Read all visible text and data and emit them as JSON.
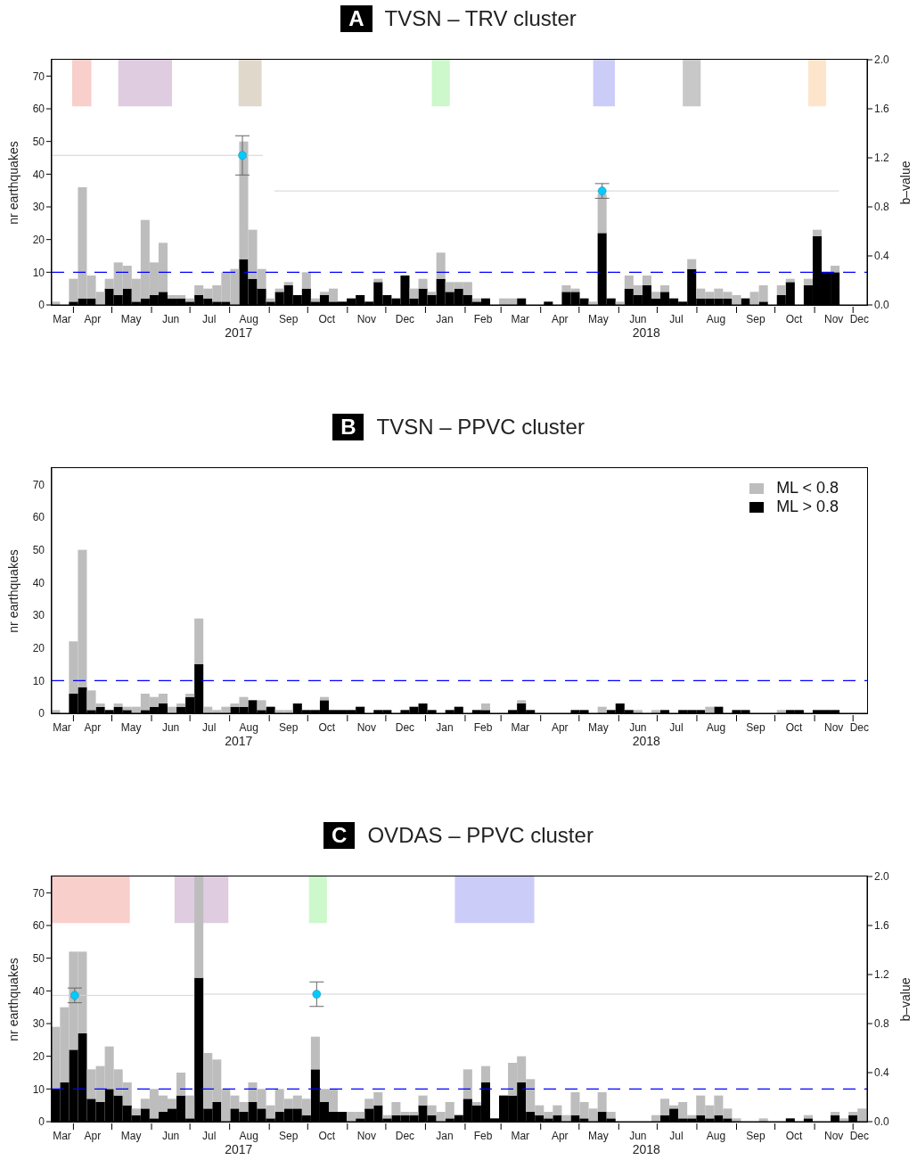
{
  "chart_data": [
    {
      "type": "bar",
      "title": "A TVSN – TRV cluster",
      "ylabel": "nr earthquakes",
      "y2label": "b–value",
      "stacked": true,
      "x": [
        "2017-03-18",
        "2017-03-25",
        "2017-04-01",
        "2017-04-08",
        "2017-04-15",
        "2017-04-22",
        "2017-04-29",
        "2017-05-06",
        "2017-05-13",
        "2017-05-20",
        "2017-05-27",
        "2017-06-03",
        "2017-06-10",
        "2017-06-17",
        "2017-06-24",
        "2017-07-01",
        "2017-07-08",
        "2017-07-15",
        "2017-07-22",
        "2017-07-29",
        "2017-08-05",
        "2017-08-12",
        "2017-08-19",
        "2017-08-26",
        "2017-09-02",
        "2017-09-09",
        "2017-09-16",
        "2017-09-23",
        "2017-09-30",
        "2017-10-07",
        "2017-10-14",
        "2017-10-21",
        "2017-10-28",
        "2017-11-04",
        "2017-11-11",
        "2017-11-18",
        "2017-11-25",
        "2017-12-02",
        "2017-12-09",
        "2017-12-16",
        "2017-12-23",
        "2017-12-30",
        "2018-01-06",
        "2018-01-13",
        "2018-01-20",
        "2018-01-27",
        "2018-02-03",
        "2018-02-10",
        "2018-02-17",
        "2018-02-24",
        "2018-03-03",
        "2018-03-10",
        "2018-03-17",
        "2018-03-24",
        "2018-03-31",
        "2018-04-07",
        "2018-04-14",
        "2018-04-21",
        "2018-04-28",
        "2018-05-05",
        "2018-05-12",
        "2018-05-19",
        "2018-05-26",
        "2018-06-02",
        "2018-06-09",
        "2018-06-16",
        "2018-06-23",
        "2018-06-30",
        "2018-07-07",
        "2018-07-14",
        "2018-07-21",
        "2018-07-28",
        "2018-08-04",
        "2018-08-11",
        "2018-08-18",
        "2018-08-25",
        "2018-09-01",
        "2018-09-08",
        "2018-09-15",
        "2018-09-22",
        "2018-09-29",
        "2018-10-06",
        "2018-10-13",
        "2018-10-20",
        "2018-10-27",
        "2018-11-03",
        "2018-11-10",
        "2018-11-17",
        "2018-11-24",
        "2018-12-01",
        "2018-12-08"
      ],
      "xlim": [
        "2017-03-15",
        "2018-12-12"
      ],
      "xticks": [
        {
          "value": "2017-03-23",
          "label": "Mar"
        },
        {
          "value": "2017-04-01",
          "label": null
        },
        {
          "value": "2017-04-16",
          "label": "Apr"
        },
        {
          "value": "2017-05-01",
          "label": null
        },
        {
          "value": "2017-05-16",
          "label": "May"
        },
        {
          "value": "2017-06-01",
          "label": null
        },
        {
          "value": "2017-06-16",
          "label": "Jun"
        },
        {
          "value": "2017-07-01",
          "label": null
        },
        {
          "value": "2017-07-16",
          "label": "Jul"
        },
        {
          "value": "2017-08-01",
          "label": null
        },
        {
          "value": "2017-08-16",
          "label": "Aug"
        },
        {
          "value": "2017-09-01",
          "label": null
        },
        {
          "value": "2017-09-16",
          "label": "Sep"
        },
        {
          "value": "2017-10-01",
          "label": null
        },
        {
          "value": "2017-10-16",
          "label": "Oct"
        },
        {
          "value": "2017-11-01",
          "label": null
        },
        {
          "value": "2017-11-16",
          "label": "Nov"
        },
        {
          "value": "2017-12-01",
          "label": null
        },
        {
          "value": "2017-12-16",
          "label": "Dec"
        },
        {
          "value": "2018-01-01",
          "label": null
        },
        {
          "value": "2018-01-16",
          "label": "Jan"
        },
        {
          "value": "2018-02-01",
          "label": null
        },
        {
          "value": "2018-02-15",
          "label": "Feb"
        },
        {
          "value": "2018-03-01",
          "label": null
        },
        {
          "value": "2018-03-16",
          "label": "Mar"
        },
        {
          "value": "2018-04-01",
          "label": null
        },
        {
          "value": "2018-04-16",
          "label": "Apr"
        },
        {
          "value": "2018-05-01",
          "label": null
        },
        {
          "value": "2018-05-16",
          "label": "May"
        },
        {
          "value": "2018-06-01",
          "label": null
        },
        {
          "value": "2018-06-16",
          "label": "Jun"
        },
        {
          "value": "2018-07-01",
          "label": null
        },
        {
          "value": "2018-07-16",
          "label": "Jul"
        },
        {
          "value": "2018-08-01",
          "label": null
        },
        {
          "value": "2018-08-16",
          "label": "Aug"
        },
        {
          "value": "2018-09-01",
          "label": null
        },
        {
          "value": "2018-09-16",
          "label": "Sep"
        },
        {
          "value": "2018-10-01",
          "label": null
        },
        {
          "value": "2018-10-16",
          "label": "Oct"
        },
        {
          "value": "2018-11-01",
          "label": null
        },
        {
          "value": "2018-11-16",
          "label": "Nov"
        },
        {
          "value": "2018-12-01",
          "label": null
        },
        {
          "value": "2018-12-06",
          "label": "Dec"
        }
      ],
      "ylim": [
        0,
        75
      ],
      "yticks": [
        0,
        10,
        20,
        30,
        40,
        50,
        60,
        70
      ],
      "y2lim": [
        0,
        2
      ],
      "y2ticks": [
        {
          "value": 0,
          "label": "0.0"
        },
        {
          "value": 0.4,
          "label": "0.4"
        },
        {
          "value": 0.8,
          "label": "0.8"
        },
        {
          "value": 1.2,
          "label": "1.2"
        },
        {
          "value": 1.6,
          "label": "1.6"
        },
        {
          "value": 2,
          "label": "2.0"
        }
      ],
      "ref_lines": [
        {
          "axis": "y",
          "value": 10,
          "color": "#0000ff",
          "line_style": "dashed"
        }
      ],
      "bands": [
        {
          "axis": "x",
          "from": "2017-03-31",
          "to": "2017-04-15",
          "color": "#f8cfcb"
        },
        {
          "axis": "x",
          "from": "2017-05-06",
          "to": "2017-06-17",
          "color": "#dfcce0"
        },
        {
          "axis": "x",
          "from": "2017-08-08",
          "to": "2017-08-26",
          "color": "#e0d8cb"
        },
        {
          "axis": "x",
          "from": "2018-01-06",
          "to": "2018-01-20",
          "color": "#ccf8cc"
        },
        {
          "axis": "x",
          "from": "2018-05-12",
          "to": "2018-05-29",
          "color": "#ccccf8"
        },
        {
          "axis": "x",
          "from": "2018-07-21",
          "to": "2018-08-04",
          "color": "#c8c8c8"
        },
        {
          "axis": "x",
          "from": "2018-10-27",
          "to": "2018-11-10",
          "color": "#fde5cc"
        }
      ],
      "annotations": [
        "2017",
        "2018"
      ],
      "legend": false,
      "series": [
        {
          "color": "#000000",
          "values": [
            0,
            0,
            1,
            2,
            2,
            0,
            5,
            3,
            5,
            1,
            2,
            3,
            4,
            2,
            2,
            1,
            3,
            2,
            1,
            1,
            0,
            14,
            8,
            5,
            1,
            4,
            6,
            3,
            5,
            1,
            3,
            1,
            1,
            2,
            3,
            1,
            7,
            3,
            2,
            9,
            2,
            5,
            3,
            8,
            4,
            5,
            3,
            1,
            2,
            0,
            0,
            0,
            2,
            0,
            0,
            1,
            0,
            4,
            4,
            2,
            0,
            22,
            2,
            0,
            5,
            3,
            6,
            2,
            4,
            2,
            1,
            11,
            2,
            2,
            2,
            2,
            0,
            2,
            0,
            1,
            0,
            3,
            7,
            0,
            6,
            21,
            10,
            10,
            0,
            0,
            0
          ]
        },
        {
          "color": "#bdbdbd",
          "values": [
            1,
            0,
            7,
            34,
            7,
            4,
            3,
            10,
            7,
            7,
            24,
            10,
            15,
            1,
            1,
            1,
            3,
            3,
            5,
            9,
            11,
            36,
            15,
            6,
            1,
            1,
            1,
            0,
            5,
            1,
            1,
            4,
            0,
            0,
            0,
            0,
            1,
            0,
            0,
            0,
            3,
            3,
            1,
            8,
            3,
            2,
            4,
            1,
            0,
            0,
            2,
            2,
            0,
            0,
            0,
            0,
            0,
            2,
            1,
            0,
            1,
            12,
            0,
            1,
            4,
            3,
            3,
            2,
            2,
            0,
            0,
            3,
            3,
            2,
            3,
            2,
            3,
            0,
            4,
            5,
            0,
            3,
            1,
            0,
            2,
            2,
            0,
            2,
            0,
            0,
            0
          ]
        },
        {
          "type": "scatter",
          "axis": "y2",
          "color": "#00ccff",
          "marker": "circle",
          "x": [
            "2017-08-11",
            "2018-05-19"
          ],
          "values": [
            1.22,
            0.93
          ],
          "errors": [
            [
              1.06,
              1.38
            ],
            [
              0.87,
              0.99
            ]
          ]
        },
        {
          "type": "line",
          "axis": "y2",
          "color": "#d3d3d3",
          "marker": "none",
          "x": [
            "2017-03-15",
            "2017-08-27"
          ],
          "values": [
            1.22,
            1.22
          ]
        },
        {
          "type": "line",
          "axis": "y2",
          "color": "#d3d3d3",
          "marker": "none",
          "x": [
            "2017-09-05",
            "2018-11-20"
          ],
          "values": [
            0.93,
            0.93
          ]
        }
      ]
    },
    {
      "type": "bar",
      "title": "B TVSN – PPVC cluster",
      "ylabel": "nr earthquakes",
      "stacked": true,
      "x": [
        "2017-03-18",
        "2017-03-25",
        "2017-04-01",
        "2017-04-08",
        "2017-04-15",
        "2017-04-22",
        "2017-04-29",
        "2017-05-06",
        "2017-05-13",
        "2017-05-20",
        "2017-05-27",
        "2017-06-03",
        "2017-06-10",
        "2017-06-17",
        "2017-06-24",
        "2017-07-01",
        "2017-07-08",
        "2017-07-15",
        "2017-07-22",
        "2017-07-29",
        "2017-08-05",
        "2017-08-12",
        "2017-08-19",
        "2017-08-26",
        "2017-09-02",
        "2017-09-09",
        "2017-09-16",
        "2017-09-23",
        "2017-09-30",
        "2017-10-07",
        "2017-10-14",
        "2017-10-21",
        "2017-10-28",
        "2017-11-04",
        "2017-11-11",
        "2017-11-18",
        "2017-11-25",
        "2017-12-02",
        "2017-12-09",
        "2017-12-16",
        "2017-12-23",
        "2017-12-30",
        "2018-01-06",
        "2018-01-13",
        "2018-01-20",
        "2018-01-27",
        "2018-02-03",
        "2018-02-10",
        "2018-02-17",
        "2018-02-24",
        "2018-03-03",
        "2018-03-10",
        "2018-03-17",
        "2018-03-24",
        "2018-03-31",
        "2018-04-07",
        "2018-04-14",
        "2018-04-21",
        "2018-04-28",
        "2018-05-05",
        "2018-05-12",
        "2018-05-19",
        "2018-05-26",
        "2018-06-02",
        "2018-06-09",
        "2018-06-16",
        "2018-06-23",
        "2018-06-30",
        "2018-07-07",
        "2018-07-14",
        "2018-07-21",
        "2018-07-28",
        "2018-08-04",
        "2018-08-11",
        "2018-08-18",
        "2018-08-25",
        "2018-09-01",
        "2018-09-08",
        "2018-09-15",
        "2018-09-22",
        "2018-09-29",
        "2018-10-06",
        "2018-10-13",
        "2018-10-20",
        "2018-10-27",
        "2018-11-03",
        "2018-11-10",
        "2018-11-17",
        "2018-11-24",
        "2018-12-01",
        "2018-12-08"
      ],
      "xlim": [
        "2017-03-15",
        "2018-12-12"
      ],
      "xticks": [
        {
          "value": "2017-03-23",
          "label": "Mar"
        },
        {
          "value": "2017-04-01",
          "label": null
        },
        {
          "value": "2017-04-16",
          "label": "Apr"
        },
        {
          "value": "2017-05-01",
          "label": null
        },
        {
          "value": "2017-05-16",
          "label": "May"
        },
        {
          "value": "2017-06-01",
          "label": null
        },
        {
          "value": "2017-06-16",
          "label": "Jun"
        },
        {
          "value": "2017-07-01",
          "label": null
        },
        {
          "value": "2017-07-16",
          "label": "Jul"
        },
        {
          "value": "2017-08-01",
          "label": null
        },
        {
          "value": "2017-08-16",
          "label": "Aug"
        },
        {
          "value": "2017-09-01",
          "label": null
        },
        {
          "value": "2017-09-16",
          "label": "Sep"
        },
        {
          "value": "2017-10-01",
          "label": null
        },
        {
          "value": "2017-10-16",
          "label": "Oct"
        },
        {
          "value": "2017-11-01",
          "label": null
        },
        {
          "value": "2017-11-16",
          "label": "Nov"
        },
        {
          "value": "2017-12-01",
          "label": null
        },
        {
          "value": "2017-12-16",
          "label": "Dec"
        },
        {
          "value": "2018-01-01",
          "label": null
        },
        {
          "value": "2018-01-16",
          "label": "Jan"
        },
        {
          "value": "2018-02-01",
          "label": null
        },
        {
          "value": "2018-02-15",
          "label": "Feb"
        },
        {
          "value": "2018-03-01",
          "label": null
        },
        {
          "value": "2018-03-16",
          "label": "Mar"
        },
        {
          "value": "2018-04-01",
          "label": null
        },
        {
          "value": "2018-04-16",
          "label": "Apr"
        },
        {
          "value": "2018-05-01",
          "label": null
        },
        {
          "value": "2018-05-16",
          "label": "May"
        },
        {
          "value": "2018-06-01",
          "label": null
        },
        {
          "value": "2018-06-16",
          "label": "Jun"
        },
        {
          "value": "2018-07-01",
          "label": null
        },
        {
          "value": "2018-07-16",
          "label": "Jul"
        },
        {
          "value": "2018-08-01",
          "label": null
        },
        {
          "value": "2018-08-16",
          "label": "Aug"
        },
        {
          "value": "2018-09-01",
          "label": null
        },
        {
          "value": "2018-09-16",
          "label": "Sep"
        },
        {
          "value": "2018-10-01",
          "label": null
        },
        {
          "value": "2018-10-16",
          "label": "Oct"
        },
        {
          "value": "2018-11-01",
          "label": null
        },
        {
          "value": "2018-11-16",
          "label": "Nov"
        },
        {
          "value": "2018-12-01",
          "label": null
        },
        {
          "value": "2018-12-06",
          "label": "Dec"
        }
      ],
      "ylim": [
        0,
        75
      ],
      "yticks": [
        0,
        10,
        20,
        30,
        40,
        50,
        60,
        70
      ],
      "ref_lines": [
        {
          "axis": "y",
          "value": 10,
          "color": "#0000ff",
          "line_style": "dashed"
        }
      ],
      "annotations": [
        "2017",
        "2018"
      ],
      "legend": "top right",
      "series": [
        {
          "name": "ML > 0.8",
          "color": "#000000",
          "values": [
            0,
            0,
            6,
            8,
            1,
            2,
            1,
            2,
            1,
            0,
            1,
            2,
            3,
            0,
            2,
            5,
            15,
            0,
            0,
            0,
            2,
            2,
            4,
            1,
            2,
            0,
            0,
            3,
            1,
            1,
            4,
            1,
            1,
            1,
            2,
            0,
            1,
            1,
            0,
            1,
            2,
            3,
            1,
            0,
            1,
            2,
            0,
            1,
            1,
            0,
            0,
            1,
            3,
            1,
            0,
            0,
            0,
            0,
            1,
            1,
            0,
            0,
            1,
            3,
            1,
            0,
            0,
            0,
            1,
            0,
            1,
            1,
            1,
            0,
            2,
            0,
            1,
            1,
            0,
            0,
            0,
            0,
            1,
            1,
            0,
            1,
            1,
            1,
            0,
            0,
            0
          ]
        },
        {
          "name": "ML < 0.8",
          "color": "#bdbdbd",
          "values": [
            1,
            0,
            16,
            42,
            6,
            1,
            0,
            1,
            1,
            2,
            5,
            3,
            3,
            2,
            1,
            1,
            14,
            2,
            1,
            2,
            1,
            3,
            0,
            3,
            0,
            1,
            1,
            0,
            0,
            0,
            1,
            0,
            0,
            0,
            0,
            0,
            0,
            0,
            0,
            0,
            0,
            0,
            0,
            0,
            0,
            0,
            0,
            0,
            2,
            0,
            0,
            0,
            1,
            0,
            0,
            0,
            0,
            0,
            0,
            0,
            0,
            2,
            0,
            0,
            0,
            1,
            0,
            1,
            0,
            0,
            0,
            0,
            0,
            2,
            0,
            0,
            0,
            0,
            0,
            0,
            0,
            1,
            0,
            0,
            0,
            0,
            0,
            0,
            0,
            0,
            0
          ]
        }
      ]
    },
    {
      "type": "bar",
      "title": "C OVDAS – PPVC cluster",
      "ylabel": "nr earthquakes",
      "y2label": "b–value",
      "stacked": true,
      "x": [
        "2017-03-18",
        "2017-03-25",
        "2017-04-01",
        "2017-04-08",
        "2017-04-15",
        "2017-04-22",
        "2017-04-29",
        "2017-05-06",
        "2017-05-13",
        "2017-05-20",
        "2017-05-27",
        "2017-06-03",
        "2017-06-10",
        "2017-06-17",
        "2017-06-24",
        "2017-07-01",
        "2017-07-08",
        "2017-07-15",
        "2017-07-22",
        "2017-07-29",
        "2017-08-05",
        "2017-08-12",
        "2017-08-19",
        "2017-08-26",
        "2017-09-02",
        "2017-09-09",
        "2017-09-16",
        "2017-09-23",
        "2017-09-30",
        "2017-10-07",
        "2017-10-14",
        "2017-10-21",
        "2017-10-28",
        "2017-11-04",
        "2017-11-11",
        "2017-11-18",
        "2017-11-25",
        "2017-12-02",
        "2017-12-09",
        "2017-12-16",
        "2017-12-23",
        "2017-12-30",
        "2018-01-06",
        "2018-01-13",
        "2018-01-20",
        "2018-01-27",
        "2018-02-03",
        "2018-02-10",
        "2018-02-17",
        "2018-02-24",
        "2018-03-03",
        "2018-03-10",
        "2018-03-17",
        "2018-03-24",
        "2018-03-31",
        "2018-04-07",
        "2018-04-14",
        "2018-04-21",
        "2018-04-28",
        "2018-05-05",
        "2018-05-12",
        "2018-05-19",
        "2018-05-26",
        "2018-06-02",
        "2018-06-09",
        "2018-06-16",
        "2018-06-23",
        "2018-06-30",
        "2018-07-07",
        "2018-07-14",
        "2018-07-21",
        "2018-07-28",
        "2018-08-04",
        "2018-08-11",
        "2018-08-18",
        "2018-08-25",
        "2018-09-01",
        "2018-09-08",
        "2018-09-15",
        "2018-09-22",
        "2018-09-29",
        "2018-10-06",
        "2018-10-13",
        "2018-10-20",
        "2018-10-27",
        "2018-11-03",
        "2018-11-10",
        "2018-11-17",
        "2018-11-24",
        "2018-12-01",
        "2018-12-08"
      ],
      "xlim": [
        "2017-03-15",
        "2018-12-12"
      ],
      "xticks": [
        {
          "value": "2017-03-23",
          "label": "Mar"
        },
        {
          "value": "2017-04-01",
          "label": null
        },
        {
          "value": "2017-04-16",
          "label": "Apr"
        },
        {
          "value": "2017-05-01",
          "label": null
        },
        {
          "value": "2017-05-16",
          "label": "May"
        },
        {
          "value": "2017-06-01",
          "label": null
        },
        {
          "value": "2017-06-16",
          "label": "Jun"
        },
        {
          "value": "2017-07-01",
          "label": null
        },
        {
          "value": "2017-07-16",
          "label": "Jul"
        },
        {
          "value": "2017-08-01",
          "label": null
        },
        {
          "value": "2017-08-16",
          "label": "Aug"
        },
        {
          "value": "2017-09-01",
          "label": null
        },
        {
          "value": "2017-09-16",
          "label": "Sep"
        },
        {
          "value": "2017-10-01",
          "label": null
        },
        {
          "value": "2017-10-16",
          "label": "Oct"
        },
        {
          "value": "2017-11-01",
          "label": null
        },
        {
          "value": "2017-11-16",
          "label": "Nov"
        },
        {
          "value": "2017-12-01",
          "label": null
        },
        {
          "value": "2017-12-16",
          "label": "Dec"
        },
        {
          "value": "2018-01-01",
          "label": null
        },
        {
          "value": "2018-01-16",
          "label": "Jan"
        },
        {
          "value": "2018-02-01",
          "label": null
        },
        {
          "value": "2018-02-15",
          "label": "Feb"
        },
        {
          "value": "2018-03-01",
          "label": null
        },
        {
          "value": "2018-03-16",
          "label": "Mar"
        },
        {
          "value": "2018-04-01",
          "label": null
        },
        {
          "value": "2018-04-16",
          "label": "Apr"
        },
        {
          "value": "2018-05-01",
          "label": null
        },
        {
          "value": "2018-05-16",
          "label": "May"
        },
        {
          "value": "2018-06-01",
          "label": null
        },
        {
          "value": "2018-06-16",
          "label": "Jun"
        },
        {
          "value": "2018-07-01",
          "label": null
        },
        {
          "value": "2018-07-16",
          "label": "Jul"
        },
        {
          "value": "2018-08-01",
          "label": null
        },
        {
          "value": "2018-08-16",
          "label": "Aug"
        },
        {
          "value": "2018-09-01",
          "label": null
        },
        {
          "value": "2018-09-16",
          "label": "Sep"
        },
        {
          "value": "2018-10-01",
          "label": null
        },
        {
          "value": "2018-10-16",
          "label": "Oct"
        },
        {
          "value": "2018-11-01",
          "label": null
        },
        {
          "value": "2018-11-16",
          "label": "Nov"
        },
        {
          "value": "2018-12-01",
          "label": null
        },
        {
          "value": "2018-12-06",
          "label": "Dec"
        }
      ],
      "ylim": [
        0,
        75
      ],
      "yticks": [
        0,
        10,
        20,
        30,
        40,
        50,
        60,
        70
      ],
      "y2lim": [
        0,
        2
      ],
      "y2ticks": [
        {
          "value": 0,
          "label": "0.0"
        },
        {
          "value": 0.4,
          "label": "0.4"
        },
        {
          "value": 0.8,
          "label": "0.8"
        },
        {
          "value": 1.2,
          "label": "1.2"
        },
        {
          "value": 1.6,
          "label": "1.6"
        },
        {
          "value": 2,
          "label": "2.0"
        }
      ],
      "ref_lines": [
        {
          "axis": "y",
          "value": 10,
          "color": "#0000ff",
          "line_style": "dashed"
        }
      ],
      "bands": [
        {
          "axis": "x",
          "from": "2017-03-15",
          "to": "2017-05-15",
          "color": "#f8cfcb"
        },
        {
          "axis": "x",
          "from": "2017-06-19",
          "to": "2017-07-31",
          "color": "#dfcce0"
        },
        {
          "axis": "x",
          "from": "2017-10-02",
          "to": "2017-10-16",
          "color": "#ccf8cc"
        },
        {
          "axis": "x",
          "from": "2018-01-24",
          "to": "2018-03-27",
          "color": "#ccccf8"
        }
      ],
      "annotations": [
        "2017",
        "2018"
      ],
      "legend": false,
      "series": [
        {
          "color": "#000000",
          "values": [
            10,
            12,
            22,
            27,
            7,
            6,
            10,
            8,
            5,
            2,
            4,
            1,
            3,
            4,
            8,
            1,
            44,
            4,
            6,
            0,
            4,
            3,
            6,
            4,
            1,
            3,
            4,
            4,
            2,
            16,
            6,
            3,
            3,
            0,
            1,
            4,
            5,
            1,
            2,
            2,
            2,
            5,
            2,
            0,
            1,
            2,
            7,
            5,
            12,
            1,
            8,
            8,
            12,
            3,
            2,
            1,
            2,
            0,
            2,
            1,
            0,
            3,
            1,
            0,
            0,
            0,
            0,
            0,
            2,
            4,
            1,
            1,
            2,
            1,
            2,
            1,
            0,
            0,
            0,
            0,
            0,
            0,
            1,
            0,
            1,
            0,
            0,
            2,
            0,
            2,
            0
          ]
        },
        {
          "color": "#bdbdbd",
          "values": [
            19,
            23,
            30,
            25,
            9,
            11,
            13,
            8,
            7,
            2,
            3,
            9,
            5,
            3,
            7,
            7,
            31,
            17,
            13,
            10,
            4,
            3,
            6,
            6,
            4,
            7,
            3,
            4,
            5,
            10,
            4,
            7,
            0,
            3,
            2,
            3,
            4,
            1,
            4,
            1,
            1,
            3,
            3,
            3,
            5,
            0,
            9,
            1,
            5,
            0,
            0,
            10,
            8,
            10,
            3,
            2,
            3,
            2,
            7,
            5,
            4,
            6,
            2,
            0,
            0,
            0,
            0,
            2,
            5,
            1,
            5,
            1,
            6,
            4,
            6,
            3,
            1,
            0,
            0,
            1,
            0,
            0,
            0,
            0,
            1,
            0,
            0,
            1,
            1,
            1,
            4
          ]
        },
        {
          "type": "scatter",
          "axis": "y2",
          "color": "#00ccff",
          "marker": "circle",
          "x": [
            "2017-04-02",
            "2017-10-08"
          ],
          "values": [
            1.03,
            1.04
          ],
          "errors": [
            [
              0.97,
              1.09
            ],
            [
              0.94,
              1.14
            ]
          ]
        },
        {
          "type": "line",
          "axis": "y2",
          "color": "#d3d3d3",
          "marker": "none",
          "x": [
            "2017-03-15",
            "2017-07-04"
          ],
          "values": [
            1.03,
            1.03
          ]
        },
        {
          "type": "line",
          "axis": "y2",
          "color": "#d3d3d3",
          "marker": "none",
          "x": [
            "2017-07-12",
            "2018-12-12"
          ],
          "values": [
            1.04,
            1.04
          ]
        }
      ]
    }
  ]
}
